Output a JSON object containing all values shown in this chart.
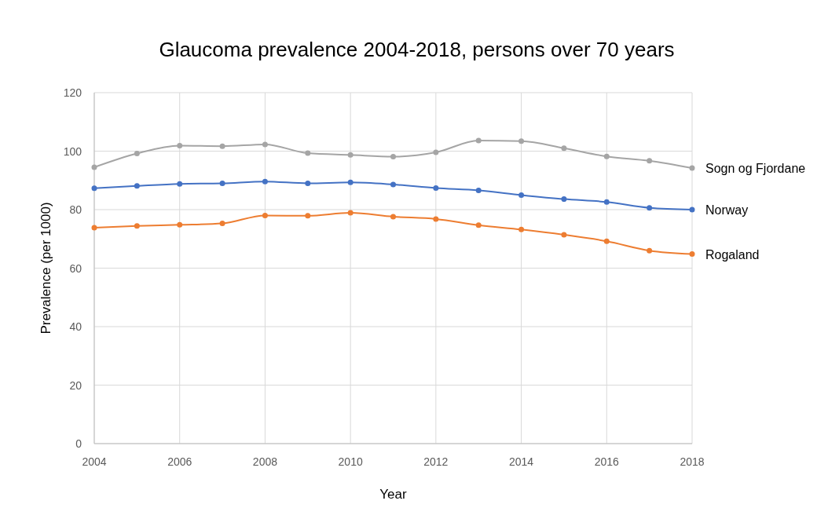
{
  "chart_data": {
    "type": "line",
    "title": "Glaucoma prevalence 2004-2018, persons over 70 years",
    "xlabel": "Year",
    "ylabel": "Prevalence (per 1000)",
    "x": [
      2004,
      2005,
      2006,
      2007,
      2008,
      2009,
      2010,
      2011,
      2012,
      2013,
      2014,
      2015,
      2016,
      2017,
      2018
    ],
    "series": [
      {
        "name": "Sogn og Fjordane",
        "color": "#a5a5a5",
        "values": [
          94.5,
          99.2,
          101.9,
          101.7,
          102.3,
          99.3,
          98.7,
          98.1,
          99.6,
          103.6,
          103.4,
          101.0,
          98.2,
          96.7,
          94.2
        ]
      },
      {
        "name": "Norway",
        "color": "#4472c4",
        "values": [
          87.3,
          88.1,
          88.8,
          89.0,
          89.6,
          89.0,
          89.3,
          88.6,
          87.4,
          86.6,
          85.0,
          83.6,
          82.6,
          80.6,
          80.0
        ]
      },
      {
        "name": "Rogaland",
        "color": "#ed7d31",
        "values": [
          73.8,
          74.4,
          74.8,
          75.3,
          78.0,
          77.9,
          78.9,
          77.6,
          76.8,
          74.7,
          73.2,
          71.4,
          69.2,
          66.0,
          64.8
        ]
      }
    ],
    "xlim": [
      2004,
      2018
    ],
    "xticks": [
      2004,
      2006,
      2008,
      2010,
      2012,
      2014,
      2016,
      2018
    ],
    "ylim": [
      0,
      120
    ],
    "yticks": [
      0,
      20,
      40,
      60,
      80,
      100,
      120
    ],
    "grid": true,
    "marker": "circle",
    "line_style": "solid",
    "legend": "right"
  }
}
